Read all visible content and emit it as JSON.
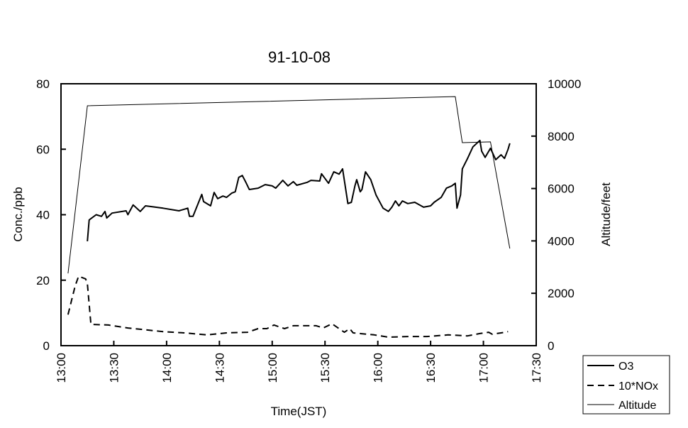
{
  "chart_data": {
    "type": "line",
    "title": "91-10-08",
    "xlabel": "Time(JST)",
    "ylabel": "Conc./ppb",
    "y2label": "Altitude/feet",
    "xlim": [
      "13:00",
      "17:30"
    ],
    "ylim": [
      0,
      80
    ],
    "y2lim": [
      0,
      10000
    ],
    "x_ticks": [
      "13:00",
      "13:30",
      "14:00",
      "14:30",
      "15:00",
      "15:30",
      "16:00",
      "16:30",
      "17:00",
      "17:30"
    ],
    "y_ticks": [
      0,
      20,
      40,
      60,
      80
    ],
    "y2_ticks": [
      0,
      2000,
      4000,
      6000,
      8000,
      10000
    ],
    "grid": false,
    "legend_position": "bottom-right",
    "series": [
      {
        "name": "O3",
        "axis": "left",
        "style": "solid-thick",
        "color": "#000000",
        "points": [
          [
            "13:15",
            31.9
          ],
          [
            "13:16",
            38.4
          ],
          [
            "13:20",
            40
          ],
          [
            "13:23",
            39.5
          ],
          [
            "13:25",
            41
          ],
          [
            "13:26",
            39
          ],
          [
            "13:29",
            40.5
          ],
          [
            "13:37",
            41.2
          ],
          [
            "13:38",
            40
          ],
          [
            "13:41",
            43
          ],
          [
            "13:45",
            41
          ],
          [
            "13:48",
            42.7
          ],
          [
            "13:58",
            42
          ],
          [
            "14:07",
            41.2
          ],
          [
            "14:12",
            42
          ],
          [
            "14:13",
            39.5
          ],
          [
            "14:15",
            39.5
          ],
          [
            "14:20",
            46.2
          ],
          [
            "14:21",
            44
          ],
          [
            "14:25",
            42.7
          ],
          [
            "14:27",
            46.8
          ],
          [
            "14:29",
            44.9
          ],
          [
            "14:32",
            45.7
          ],
          [
            "14:34",
            45.3
          ],
          [
            "14:37",
            46.6
          ],
          [
            "14:39",
            47
          ],
          [
            "14:41",
            51.4
          ],
          [
            "14:43",
            52
          ],
          [
            "14:45",
            49.9
          ],
          [
            "14:47",
            47.7
          ],
          [
            "14:52",
            48.1
          ],
          [
            "14:56",
            49.2
          ],
          [
            "15:00",
            48.8
          ],
          [
            "15:02",
            48.1
          ],
          [
            "15:06",
            50.5
          ],
          [
            "15:09",
            48.8
          ],
          [
            "15:12",
            50.1
          ],
          [
            "15:14",
            49
          ],
          [
            "15:20",
            49.9
          ],
          [
            "15:22",
            50.5
          ],
          [
            "15:27",
            50.3
          ],
          [
            "15:28",
            52.5
          ],
          [
            "15:32",
            49.6
          ],
          [
            "15:35",
            53.1
          ],
          [
            "15:38",
            52.4
          ],
          [
            "15:40",
            54
          ],
          [
            "15:43",
            43.4
          ],
          [
            "15:45",
            43.8
          ],
          [
            "15:47",
            48.8
          ],
          [
            "15:48",
            50.7
          ],
          [
            "15:50",
            47
          ],
          [
            "15:51",
            47.7
          ],
          [
            "15:53",
            53.1
          ],
          [
            "15:56",
            50.7
          ],
          [
            "15:59",
            46
          ],
          [
            "16:03",
            42
          ],
          [
            "16:06",
            41
          ],
          [
            "16:08",
            42.3
          ],
          [
            "16:10",
            44.2
          ],
          [
            "16:12",
            42.7
          ],
          [
            "16:14",
            44.2
          ],
          [
            "16:17",
            43.4
          ],
          [
            "16:21",
            43.8
          ],
          [
            "16:26",
            42.3
          ],
          [
            "16:30",
            42.7
          ],
          [
            "16:32",
            43.8
          ],
          [
            "16:36",
            45.3
          ],
          [
            "16:39",
            48.1
          ],
          [
            "16:42",
            48.8
          ],
          [
            "16:44",
            49.6
          ],
          [
            "16:45",
            42
          ],
          [
            "16:47",
            46
          ],
          [
            "16:48",
            54
          ],
          [
            "16:51",
            57.2
          ],
          [
            "16:54",
            60.7
          ],
          [
            "16:58",
            62.7
          ],
          [
            "16:59",
            59.4
          ],
          [
            "17:01",
            57.5
          ],
          [
            "17:04",
            60.3
          ],
          [
            "17:07",
            56.8
          ],
          [
            "17:10",
            58.3
          ],
          [
            "17:12",
            57.2
          ],
          [
            "17:14",
            60
          ],
          [
            "17:15",
            61.8
          ]
        ]
      },
      {
        "name": "10*NOx",
        "axis": "left",
        "style": "dashed",
        "color": "#000000",
        "points": [
          [
            "13:04",
            9.5
          ],
          [
            "13:08",
            18.2
          ],
          [
            "13:10",
            21.2
          ],
          [
            "13:14",
            20.4
          ],
          [
            "13:15",
            18.9
          ],
          [
            "13:17",
            6.5
          ],
          [
            "13:27",
            6.3
          ],
          [
            "13:38",
            5.4
          ],
          [
            "13:45",
            5
          ],
          [
            "13:58",
            4.3
          ],
          [
            "14:10",
            3.9
          ],
          [
            "14:23",
            3.3
          ],
          [
            "14:34",
            3.9
          ],
          [
            "14:46",
            4.1
          ],
          [
            "14:52",
            5.2
          ],
          [
            "14:57",
            5.2
          ],
          [
            "15:01",
            6.3
          ],
          [
            "15:07",
            5.2
          ],
          [
            "15:12",
            6.1
          ],
          [
            "15:25",
            6.1
          ],
          [
            "15:29",
            5.4
          ],
          [
            "15:34",
            6.7
          ],
          [
            "15:38",
            5.2
          ],
          [
            "15:41",
            4.1
          ],
          [
            "15:44",
            5.2
          ],
          [
            "15:46",
            3.9
          ],
          [
            "15:58",
            3.3
          ],
          [
            "16:06",
            2.6
          ],
          [
            "16:18",
            2.8
          ],
          [
            "16:28",
            2.8
          ],
          [
            "16:40",
            3.3
          ],
          [
            "16:51",
            3
          ],
          [
            "16:58",
            3.7
          ],
          [
            "17:03",
            4.1
          ],
          [
            "17:05",
            3.5
          ],
          [
            "17:10",
            3.9
          ],
          [
            "17:14",
            4.3
          ]
        ]
      },
      {
        "name": "Altitude",
        "axis": "right",
        "style": "solid-thin",
        "color": "#000000",
        "points": [
          [
            "13:04",
            2760
          ],
          [
            "13:15",
            9160
          ],
          [
            "16:44",
            9510
          ],
          [
            "16:48",
            7750
          ],
          [
            "17:04",
            7780
          ],
          [
            "17:15",
            3710
          ]
        ]
      }
    ]
  }
}
